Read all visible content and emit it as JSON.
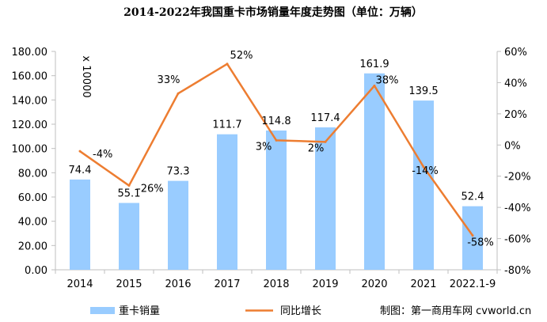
{
  "chart_data": {
    "type": "bar",
    "title": "2014-2022年我国重卡市场销量年度走势图（单位：万辆）",
    "categories": [
      "2014",
      "2015",
      "2016",
      "2017",
      "2018",
      "2019",
      "2020",
      "2021",
      "2022.1-9"
    ],
    "series": [
      {
        "name": "重卡销量",
        "type": "bar",
        "axis": "left",
        "color": "#99ccff",
        "values": [
          74.4,
          55.1,
          73.3,
          111.7,
          114.8,
          117.4,
          161.9,
          139.5,
          52.4
        ],
        "labels": [
          "74.4",
          "55.1",
          "73.3",
          "111.7",
          "114.8",
          "117.4",
          "161.9",
          "139.5",
          "52.4"
        ]
      },
      {
        "name": "同比增长",
        "type": "line",
        "axis": "right",
        "color": "#ed7d31",
        "values": [
          -4,
          -26,
          33,
          52,
          3,
          2,
          38,
          -14,
          -58
        ],
        "labels": [
          "-4%",
          "-26%",
          "33%",
          "52%",
          "3%",
          "2%",
          "38%",
          "-14%",
          "-58%"
        ]
      }
    ],
    "y_left": {
      "min": 0,
      "max": 180,
      "step": 20,
      "ticks": [
        "0.00",
        "20.00",
        "40.00",
        "60.00",
        "80.00",
        "100.00",
        "120.00",
        "140.00",
        "160.00",
        "180.00"
      ],
      "unit_label": "x 10000"
    },
    "y_right": {
      "min": -80,
      "max": 60,
      "step": 20,
      "ticks": [
        "-80%",
        "-60%",
        "-40%",
        "-20%",
        "0%",
        "20%",
        "40%",
        "60%"
      ]
    },
    "grid": false,
    "legend_position": "bottom",
    "credit": "制图：第一商用车网 cvworld.cn"
  }
}
